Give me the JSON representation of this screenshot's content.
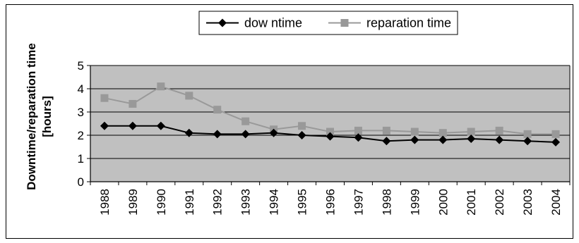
{
  "chart_data": {
    "type": "line",
    "x": [
      "1988",
      "1989",
      "1990",
      "1991",
      "1992",
      "1993",
      "1994",
      "1995",
      "1996",
      "1997",
      "1998",
      "1999",
      "2000",
      "2001",
      "2002",
      "2003",
      "2004"
    ],
    "series": [
      {
        "name": "dow ntime",
        "color": "#000000",
        "marker": "diamond",
        "values": [
          2.4,
          2.4,
          2.4,
          2.1,
          2.05,
          2.05,
          2.1,
          2.0,
          1.95,
          1.9,
          1.75,
          1.8,
          1.8,
          1.85,
          1.8,
          1.75,
          1.7
        ]
      },
      {
        "name": "reparation time",
        "color": "#999999",
        "marker": "square",
        "values": [
          3.6,
          3.35,
          4.1,
          3.7,
          3.1,
          2.6,
          2.25,
          2.4,
          2.15,
          2.2,
          2.2,
          2.15,
          2.1,
          2.15,
          2.2,
          2.05,
          2.05
        ]
      }
    ],
    "ylabel_line1": "Downtime/reparation time",
    "ylabel_line2": "[hours]",
    "ylim": [
      0,
      5
    ],
    "yticks": [
      "0",
      "1",
      "2",
      "3",
      "4",
      "5"
    ],
    "grid": true,
    "legend_position": "top-center",
    "plot_background": "#c0c0c0"
  }
}
